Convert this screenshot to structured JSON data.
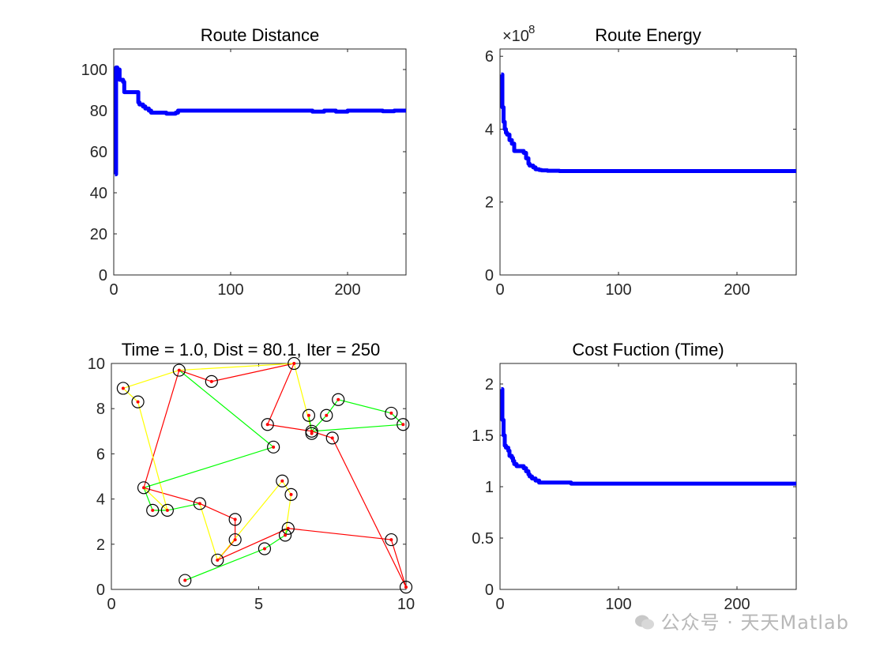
{
  "watermark": "公众号 · 天天Matlab",
  "colors": {
    "line": "#0000ff",
    "text": "#262626",
    "route_red": "#ff0000",
    "route_yellow": "#ffff00",
    "route_green": "#00ff00",
    "city_ring": "#000000"
  },
  "chart_data": [
    {
      "id": "route-distance",
      "type": "line",
      "title": "Route Distance",
      "xlim": [
        0,
        250
      ],
      "ylim": [
        0,
        110
      ],
      "xticks": [
        0,
        100,
        200
      ],
      "yticks": [
        0,
        20,
        40,
        60,
        80,
        100
      ],
      "xlabel": "",
      "ylabel": "",
      "series": [
        {
          "name": "distance",
          "x": [
            1,
            2,
            3,
            5,
            6,
            8,
            9,
            10,
            12,
            14,
            16,
            18,
            20,
            21,
            22,
            24,
            25,
            27,
            28,
            30,
            32,
            35,
            40,
            45,
            50,
            53,
            55,
            58,
            60,
            70,
            80,
            90,
            100,
            120,
            140,
            160,
            170,
            180,
            190,
            200,
            210,
            220,
            230,
            240,
            250
          ],
          "values": [
            49,
            101,
            100,
            95,
            95,
            94,
            89,
            89,
            89,
            89,
            89,
            89,
            89,
            84,
            83,
            83,
            82,
            81,
            81,
            80,
            79,
            79,
            79,
            78.5,
            78.5,
            79,
            80,
            80,
            80,
            80,
            80,
            80,
            80,
            80,
            80,
            80,
            79.5,
            80,
            79.5,
            80,
            80,
            80,
            79.7,
            80,
            80
          ]
        }
      ]
    },
    {
      "id": "route-energy",
      "type": "line",
      "title": "Route Energy",
      "exponent_label": "×10",
      "exponent_power": "8",
      "xlim": [
        0,
        250
      ],
      "ylim": [
        0,
        6.2
      ],
      "xticks": [
        0,
        100,
        200
      ],
      "yticks": [
        0,
        2,
        4,
        6
      ],
      "xlabel": "",
      "ylabel": "",
      "series": [
        {
          "name": "energy",
          "x": [
            1,
            2,
            3,
            4,
            5,
            6,
            8,
            10,
            12,
            14,
            15,
            17,
            20,
            22,
            24,
            25,
            27,
            28,
            30,
            33,
            35,
            40,
            50,
            60,
            80,
            100,
            150,
            200,
            250
          ],
          "values": [
            5.5,
            4.6,
            4.2,
            4.0,
            3.9,
            3.85,
            3.7,
            3.6,
            3.4,
            3.4,
            3.4,
            3.4,
            3.35,
            3.2,
            3.05,
            3.0,
            3.0,
            2.95,
            2.9,
            2.88,
            2.87,
            2.86,
            2.85,
            2.85,
            2.85,
            2.85,
            2.85,
            2.85,
            2.85
          ]
        }
      ]
    },
    {
      "id": "route-map",
      "type": "scatter",
      "title": "Time = 1.0, Dist = 80.1, Iter = 250",
      "xlim": [
        0,
        10
      ],
      "ylim": [
        0,
        10
      ],
      "xticks": [
        0,
        5,
        10
      ],
      "yticks": [
        0,
        2,
        4,
        6,
        8,
        10
      ],
      "xlabel": "",
      "ylabel": "",
      "cities": [
        [
          0.4,
          8.9
        ],
        [
          0.9,
          8.3
        ],
        [
          2.3,
          9.7
        ],
        [
          3.4,
          9.2
        ],
        [
          6.2,
          10.0
        ],
        [
          5.3,
          7.3
        ],
        [
          6.8,
          7.0
        ],
        [
          6.7,
          7.7
        ],
        [
          7.3,
          7.7
        ],
        [
          7.7,
          8.4
        ],
        [
          9.5,
          7.8
        ],
        [
          9.9,
          7.3
        ],
        [
          6.8,
          6.9
        ],
        [
          7.5,
          6.7
        ],
        [
          5.5,
          6.3
        ],
        [
          1.1,
          4.5
        ],
        [
          1.4,
          3.5
        ],
        [
          1.9,
          3.5
        ],
        [
          3.0,
          3.8
        ],
        [
          5.8,
          4.8
        ],
        [
          6.1,
          4.2
        ],
        [
          4.2,
          3.1
        ],
        [
          4.2,
          2.2
        ],
        [
          6.0,
          2.7
        ],
        [
          5.9,
          2.4
        ],
        [
          5.2,
          1.8
        ],
        [
          3.6,
          1.3
        ],
        [
          2.5,
          0.4
        ],
        [
          9.5,
          2.2
        ],
        [
          10.0,
          0.1
        ]
      ],
      "routes": [
        {
          "color": "red",
          "path": [
            [
              2.3,
              9.7
            ],
            [
              3.4,
              9.2
            ],
            [
              6.2,
              10.0
            ],
            [
              5.3,
              7.3
            ],
            [
              6.8,
              7.0
            ],
            [
              7.5,
              6.7
            ],
            [
              10.0,
              0.1
            ],
            [
              9.5,
              2.2
            ],
            [
              6.0,
              2.7
            ],
            [
              3.6,
              1.3
            ],
            [
              4.2,
              2.2
            ],
            [
              4.2,
              3.1
            ],
            [
              3.0,
              3.8
            ],
            [
              1.1,
              4.5
            ],
            [
              2.3,
              9.7
            ]
          ]
        },
        {
          "color": "yellow",
          "path": [
            [
              0.4,
              8.9
            ],
            [
              0.9,
              8.3
            ],
            [
              1.9,
              3.5
            ],
            [
              1.1,
              4.5
            ]
          ]
        },
        {
          "color": "yellow",
          "path": [
            [
              2.3,
              9.7
            ],
            [
              6.2,
              10.0
            ],
            [
              6.8,
              7.0
            ]
          ]
        },
        {
          "color": "yellow",
          "path": [
            [
              3.0,
              3.8
            ],
            [
              3.6,
              1.3
            ],
            [
              5.8,
              4.8
            ],
            [
              6.1,
              4.2
            ],
            [
              5.9,
              2.4
            ]
          ]
        },
        {
          "color": "yellow",
          "path": [
            [
              0.4,
              8.9
            ],
            [
              2.3,
              9.7
            ]
          ]
        },
        {
          "color": "green",
          "path": [
            [
              2.3,
              9.7
            ],
            [
              5.5,
              6.3
            ],
            [
              1.1,
              4.5
            ],
            [
              1.4,
              3.5
            ],
            [
              1.9,
              3.5
            ],
            [
              3.0,
              3.8
            ]
          ]
        },
        {
          "color": "green",
          "path": [
            [
              6.7,
              7.7
            ],
            [
              6.8,
              7.0
            ],
            [
              9.9,
              7.3
            ],
            [
              9.5,
              7.8
            ],
            [
              7.7,
              8.4
            ],
            [
              7.3,
              7.7
            ],
            [
              6.8,
              7.0
            ]
          ]
        },
        {
          "color": "green",
          "path": [
            [
              2.5,
              0.4
            ],
            [
              5.2,
              1.8
            ],
            [
              5.9,
              2.4
            ],
            [
              6.0,
              2.7
            ]
          ]
        }
      ]
    },
    {
      "id": "cost-function",
      "type": "line",
      "title": "Cost Fuction (Time)",
      "xlim": [
        0,
        250
      ],
      "ylim": [
        0,
        2.2
      ],
      "xticks": [
        0,
        100,
        200
      ],
      "yticks": [
        0,
        0.5,
        1,
        1.5,
        2
      ],
      "xlabel": "",
      "ylabel": "",
      "series": [
        {
          "name": "cost",
          "x": [
            1,
            2,
            3,
            4,
            5,
            7,
            8,
            10,
            11,
            12,
            14,
            15,
            17,
            20,
            22,
            24,
            25,
            27,
            30,
            33,
            35,
            40,
            50,
            60,
            80,
            100,
            150,
            200,
            250
          ],
          "values": [
            1.95,
            1.65,
            1.5,
            1.4,
            1.38,
            1.35,
            1.3,
            1.28,
            1.25,
            1.22,
            1.2,
            1.2,
            1.2,
            1.18,
            1.15,
            1.12,
            1.1,
            1.08,
            1.06,
            1.04,
            1.04,
            1.04,
            1.04,
            1.03,
            1.03,
            1.03,
            1.03,
            1.03,
            1.03
          ]
        }
      ]
    }
  ]
}
